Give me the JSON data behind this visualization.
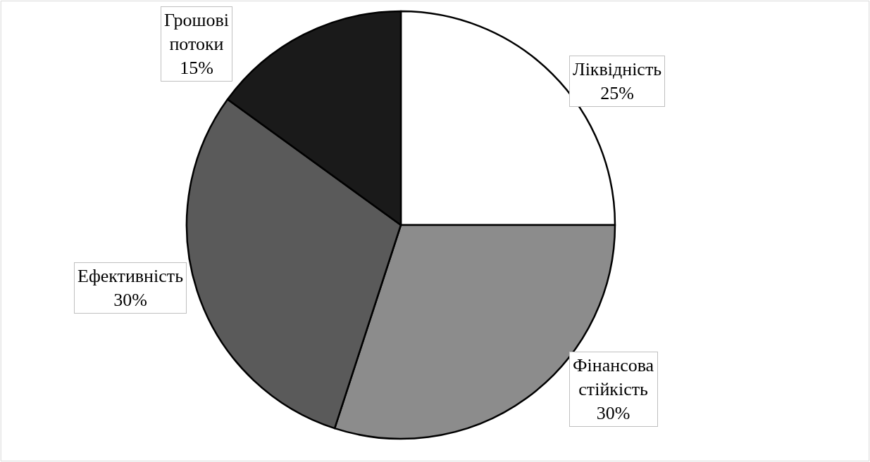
{
  "chart_data": {
    "type": "pie",
    "categories": [
      "Ліквідність",
      "Фінансова стійкість",
      "Ефективність",
      "Грошові потоки"
    ],
    "values": [
      25,
      30,
      30,
      15
    ],
    "colors": [
      "#ffffff",
      "#8c8c8c",
      "#5a5a5a",
      "#1a1a1a"
    ],
    "value_labels": [
      "25%",
      "30%",
      "30%",
      "15%"
    ],
    "legend": false
  }
}
